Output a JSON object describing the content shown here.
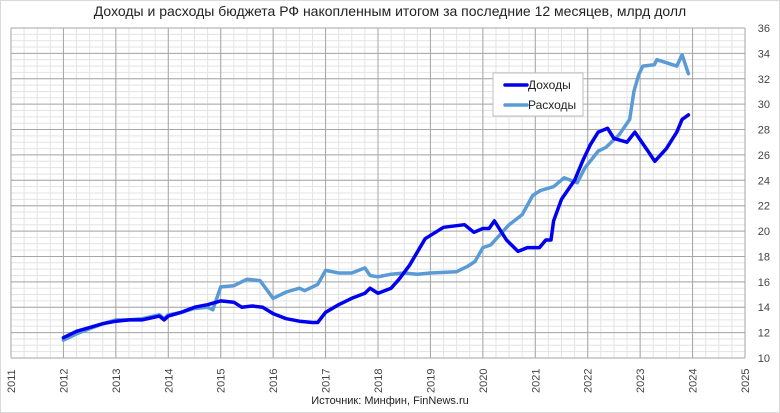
{
  "chart_data": {
    "type": "line",
    "title": "Доходы и расходы бюджета РФ накопленным итогом за последние 12 месяцев, млрд долл",
    "source": "Источник: Минфин, FinNews.ru",
    "xlabel": "",
    "ylabel": "",
    "xlim": [
      2011,
      2025
    ],
    "ylim": [
      10,
      36
    ],
    "x_ticks": [
      "2011",
      "2012",
      "2013",
      "2014",
      "2015",
      "2016",
      "2017",
      "2018",
      "2019",
      "2020",
      "2021",
      "2022",
      "2023",
      "2024",
      "2025"
    ],
    "y_ticks": [
      "10",
      "12",
      "14",
      "16",
      "18",
      "20",
      "22",
      "24",
      "26",
      "28",
      "30",
      "32",
      "34",
      "36"
    ],
    "grid": true,
    "legend_position": "top-right",
    "series": [
      {
        "name": "Доходы",
        "color": "#0000ee",
        "x": [
          2012.0,
          2012.25,
          2012.5,
          2012.75,
          2013.0,
          2013.25,
          2013.5,
          2013.83,
          2013.92,
          2014.0,
          2014.25,
          2014.5,
          2014.75,
          2015.0,
          2015.25,
          2015.4,
          2015.6,
          2015.8,
          2016.0,
          2016.25,
          2016.5,
          2016.75,
          2016.85,
          2017.0,
          2017.25,
          2017.5,
          2017.75,
          2017.85,
          2018.0,
          2018.25,
          2018.4,
          2018.6,
          2018.9,
          2019.25,
          2019.65,
          2019.83,
          2020.0,
          2020.12,
          2020.22,
          2020.45,
          2020.67,
          2020.85,
          2021.08,
          2021.2,
          2021.3,
          2021.35,
          2021.5,
          2021.75,
          2021.9,
          2022.05,
          2022.2,
          2022.38,
          2022.5,
          2022.75,
          2022.9,
          2023.0,
          2023.15,
          2023.28,
          2023.5,
          2023.7,
          2023.8,
          2023.92
        ],
        "y": [
          11.6,
          12.1,
          12.4,
          12.7,
          12.9,
          13.0,
          13.0,
          13.3,
          13.0,
          13.3,
          13.6,
          14.0,
          14.2,
          14.5,
          14.4,
          14.0,
          14.1,
          14.0,
          13.5,
          13.1,
          12.9,
          12.8,
          12.8,
          13.6,
          14.2,
          14.7,
          15.1,
          15.5,
          15.1,
          15.5,
          16.2,
          17.3,
          19.4,
          20.3,
          20.5,
          19.9,
          20.2,
          20.2,
          20.8,
          19.3,
          18.4,
          18.7,
          18.7,
          19.3,
          19.3,
          20.8,
          22.5,
          24.0,
          25.5,
          26.8,
          27.8,
          28.1,
          27.3,
          27.0,
          27.8,
          27.2,
          26.3,
          25.5,
          26.5,
          27.8,
          28.8,
          29.15
        ]
      },
      {
        "name": "Расходы",
        "color": "#5b9bd5",
        "x": [
          2012.0,
          2012.25,
          2012.5,
          2012.75,
          2013.0,
          2013.25,
          2013.5,
          2013.83,
          2013.92,
          2014.0,
          2014.25,
          2014.5,
          2014.75,
          2014.85,
          2015.0,
          2015.25,
          2015.5,
          2015.75,
          2016.0,
          2016.25,
          2016.5,
          2016.6,
          2016.75,
          2016.85,
          2017.0,
          2017.25,
          2017.5,
          2017.75,
          2017.85,
          2018.0,
          2018.25,
          2018.5,
          2018.75,
          2019.0,
          2019.5,
          2019.7,
          2019.85,
          2020.0,
          2020.15,
          2020.5,
          2020.75,
          2020.95,
          2021.1,
          2021.35,
          2021.55,
          2021.8,
          2021.95,
          2022.2,
          2022.35,
          2022.6,
          2022.8,
          2022.88,
          2022.97,
          2023.05,
          2023.27,
          2023.32,
          2023.7,
          2023.8,
          2023.92
        ],
        "y": [
          11.4,
          11.9,
          12.3,
          12.7,
          13.0,
          13.0,
          13.1,
          13.4,
          13.1,
          13.4,
          13.6,
          13.9,
          14.0,
          13.8,
          15.6,
          15.7,
          16.2,
          16.1,
          14.7,
          15.2,
          15.5,
          15.3,
          15.6,
          15.8,
          16.9,
          16.7,
          16.7,
          17.1,
          16.5,
          16.4,
          16.6,
          16.7,
          16.6,
          16.7,
          16.8,
          17.2,
          17.6,
          18.7,
          18.9,
          20.5,
          21.3,
          22.8,
          23.2,
          23.5,
          24.2,
          23.8,
          25.0,
          26.3,
          26.6,
          27.6,
          28.8,
          31.0,
          32.3,
          33.0,
          33.1,
          33.5,
          33.0,
          33.9,
          32.4
        ]
      }
    ]
  }
}
